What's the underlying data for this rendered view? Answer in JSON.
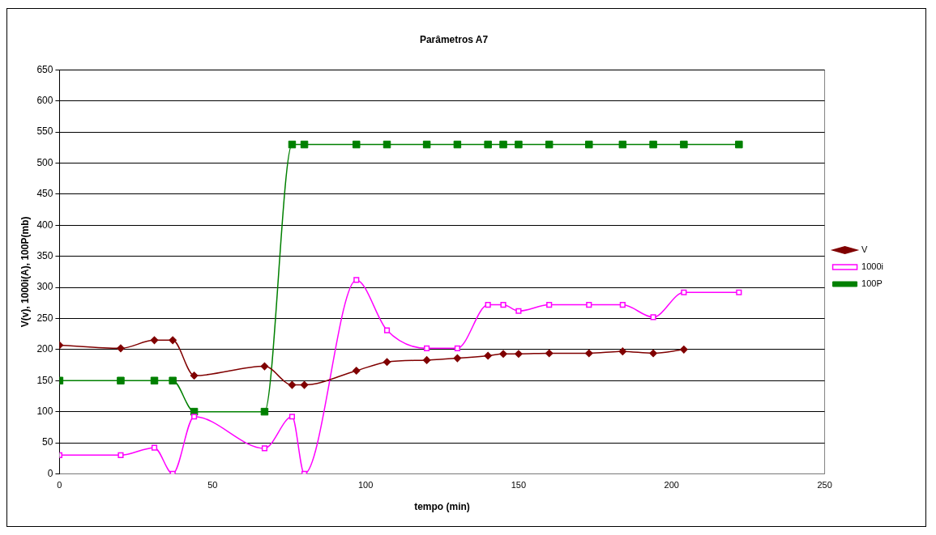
{
  "chart_data": {
    "type": "line",
    "title": "Parâmetros A7",
    "xlabel": "tempo (min)",
    "ylabel": "V(v), 1000i(A), 100P(mb)",
    "x": [
      0,
      20,
      31,
      37,
      44,
      67,
      76,
      80,
      97,
      107,
      120,
      130,
      140,
      145,
      150,
      160,
      173,
      184,
      194,
      204,
      222
    ],
    "series": [
      {
        "name": "V",
        "color": "#800000",
        "marker": "diamond",
        "x": [
          0,
          20,
          31,
          37,
          44,
          67,
          76,
          80,
          97,
          107,
          120,
          130,
          140,
          145,
          150,
          160,
          173,
          184,
          194,
          204
        ],
        "values": [
          207,
          202,
          215,
          215,
          158,
          173,
          143,
          143,
          166,
          180,
          183,
          186,
          190,
          193,
          193,
          194,
          194,
          197,
          194,
          200
        ]
      },
      {
        "name": "1000i",
        "color": "#ff00ff",
        "marker": "square",
        "values": [
          30,
          30,
          42,
          0,
          92,
          41,
          92,
          0,
          312,
          231,
          202,
          202,
          272,
          272,
          262,
          272,
          272,
          272,
          252,
          292,
          292
        ]
      },
      {
        "name": "100P",
        "color": "#008000",
        "marker": "square",
        "values": [
          150,
          150,
          150,
          150,
          100,
          100,
          530,
          530,
          530,
          530,
          530,
          530,
          530,
          530,
          530,
          530,
          530,
          530,
          530,
          530,
          530
        ]
      }
    ],
    "xlim": [
      0,
      250
    ],
    "xticks": [
      0,
      50,
      100,
      150,
      200,
      250
    ],
    "ylim": [
      0,
      650
    ],
    "yticks": [
      0,
      50,
      100,
      150,
      200,
      250,
      300,
      350,
      400,
      450,
      500,
      550,
      600,
      650
    ],
    "grid": "y",
    "legend": "right"
  }
}
